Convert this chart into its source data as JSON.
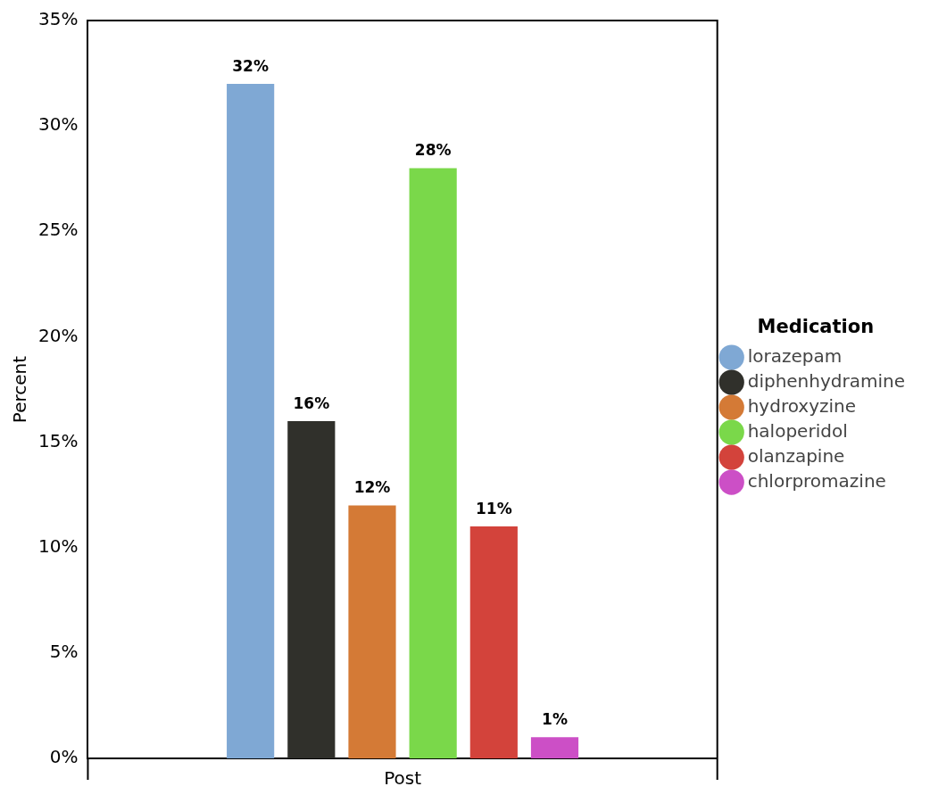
{
  "chart_data": {
    "type": "bar",
    "ylabel": "Percent",
    "legend_title": "Medication",
    "legend": "right",
    "marker": "circle",
    "grid": false,
    "categories": [
      "Post"
    ],
    "ylim": [
      0,
      35
    ],
    "yticks": [
      {
        "value": 0,
        "label": "0%"
      },
      {
        "value": 5,
        "label": "5%"
      },
      {
        "value": 10,
        "label": "10%"
      },
      {
        "value": 15,
        "label": "15%"
      },
      {
        "value": 20,
        "label": "20%"
      },
      {
        "value": 25,
        "label": "25%"
      },
      {
        "value": 30,
        "label": "30%"
      },
      {
        "value": 35,
        "label": "35%"
      }
    ],
    "series": [
      {
        "name": "lorazepam",
        "color": "#7fa8d4",
        "values": [
          32
        ],
        "value_labels": [
          "32%"
        ]
      },
      {
        "name": "diphenhydramine",
        "color": "#30302b",
        "values": [
          16
        ],
        "value_labels": [
          "16%"
        ]
      },
      {
        "name": "hydroxyzine",
        "color": "#d47a36",
        "values": [
          12
        ],
        "value_labels": [
          "12%"
        ]
      },
      {
        "name": "haloperidol",
        "color": "#7ad84a",
        "values": [
          28
        ],
        "value_labels": [
          "28%"
        ]
      },
      {
        "name": "olanzapine",
        "color": "#d3433b",
        "values": [
          11
        ],
        "value_labels": [
          "11%"
        ]
      },
      {
        "name": "chlorpromazine",
        "color": "#cc4fc6",
        "values": [
          1
        ],
        "value_labels": [
          "1%"
        ]
      }
    ]
  }
}
